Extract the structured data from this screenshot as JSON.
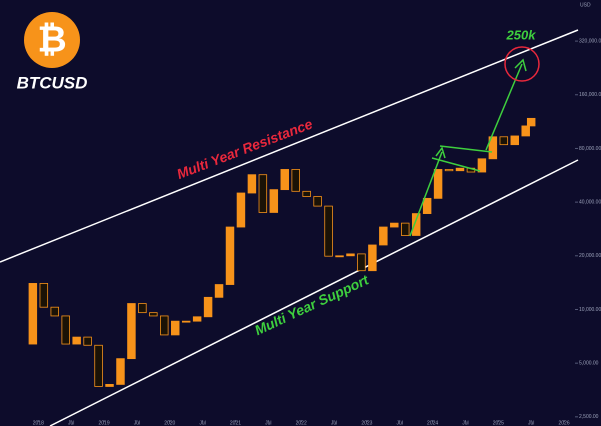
{
  "chart_data": {
    "type": "candlestick",
    "title": "BTCUSD",
    "logo": "₿",
    "axis_unit": "USD",
    "annotations": {
      "resistance": "Multi Year Resistance",
      "support": "Multi Year Support",
      "target": "250k"
    },
    "log_scale": true,
    "up_color": "#f7931a",
    "down_color": "#1a1206",
    "x": [
      "2017-10",
      "2017-12",
      "2018-02",
      "2018-04",
      "2018-06",
      "2018-08",
      "2018-10",
      "2018-12",
      "2019-02",
      "2019-04",
      "2019-06",
      "2019-08",
      "2019-10",
      "2019-12",
      "2020-02",
      "2020-04",
      "2020-06",
      "2020-08",
      "2020-10",
      "2020-12",
      "2021-02",
      "2021-04",
      "2021-06",
      "2021-08",
      "2021-10",
      "2021-12",
      "2022-02",
      "2022-04",
      "2022-06",
      "2022-08",
      "2022-10",
      "2022-12",
      "2023-02",
      "2023-04",
      "2023-06",
      "2023-08",
      "2023-10",
      "2023-12",
      "2024-02",
      "2024-04",
      "2024-06",
      "2024-08",
      "2024-10",
      "2024-12",
      "2025-02",
      "2025-04",
      "2025-06",
      "2025-07"
    ],
    "values": [
      6400,
      14000,
      10300,
      9200,
      6400,
      7000,
      6300,
      3700,
      3800,
      5300,
      10800,
      9600,
      9200,
      7200,
      8600,
      8600,
      9100,
      11700,
      13800,
      29000,
      45000,
      57000,
      35000,
      47000,
      61000,
      46000,
      43000,
      38000,
      19900,
      20000,
      20500,
      16500,
      23000,
      29000,
      30500,
      26000,
      34500,
      42000,
      61000,
      60000,
      62000,
      59000,
      70000,
      93000,
      84000,
      94000,
      107000,
      118000
    ],
    "xlim": [
      "2017-06",
      "2026-03"
    ],
    "xticks": [
      {
        "value": "2018-01",
        "label": "2018"
      },
      {
        "value": "2018-07",
        "label": "Jul"
      },
      {
        "value": "2019-01",
        "label": "2019"
      },
      {
        "value": "2019-07",
        "label": "Jul"
      },
      {
        "value": "2020-01",
        "label": "2020"
      },
      {
        "value": "2020-07",
        "label": "Jul"
      },
      {
        "value": "2021-01",
        "label": "2021"
      },
      {
        "value": "2021-07",
        "label": "Jul"
      },
      {
        "value": "2022-01",
        "label": "2022"
      },
      {
        "value": "2022-07",
        "label": "Jul"
      },
      {
        "value": "2023-01",
        "label": "2023"
      },
      {
        "value": "2023-07",
        "label": "Jul"
      },
      {
        "value": "2024-01",
        "label": "2024"
      },
      {
        "value": "2024-07",
        "label": "Jul"
      },
      {
        "value": "2025-01",
        "label": "2025"
      },
      {
        "value": "2025-07",
        "label": "Jul"
      },
      {
        "value": "2026-01",
        "label": "2026"
      }
    ],
    "ylim": [
      2400,
      510000
    ],
    "yticks": [
      {
        "value": 2500,
        "label": "2,500.00"
      },
      {
        "value": 5000,
        "label": "5,000.00"
      },
      {
        "value": 10000,
        "label": "10,000.00"
      },
      {
        "value": 20000,
        "label": "20,000.00"
      },
      {
        "value": 40000,
        "label": "40,000.00"
      },
      {
        "value": 80000,
        "label": "80,000.00"
      },
      {
        "value": 160000,
        "label": "160,000.00"
      },
      {
        "value": 320000,
        "label": "320,000.00"
      }
    ]
  }
}
